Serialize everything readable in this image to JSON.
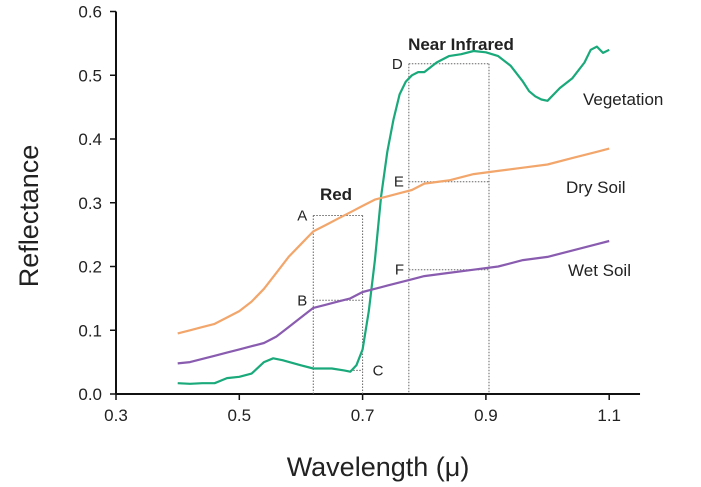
{
  "chart_data": {
    "type": "line",
    "xlabel": "Wavelength (μ)",
    "ylabel": "Reflectance",
    "xlim": [
      0.3,
      1.15
    ],
    "ylim": [
      0.0,
      0.6
    ],
    "x_ticks": [
      "0.3",
      "0.5",
      "0.7",
      "0.9",
      "1.1"
    ],
    "y_ticks": [
      "0.0",
      "0.1",
      "0.2",
      "0.3",
      "0.4",
      "0.5",
      "0.6"
    ],
    "grid": false,
    "series": [
      {
        "name": "Vegetation",
        "color": "#1aa97a",
        "x": [
          0.4,
          0.42,
          0.44,
          0.46,
          0.48,
          0.5,
          0.52,
          0.54,
          0.555,
          0.57,
          0.6,
          0.62,
          0.65,
          0.67,
          0.68,
          0.69,
          0.7,
          0.71,
          0.72,
          0.73,
          0.74,
          0.75,
          0.76,
          0.77,
          0.78,
          0.79,
          0.8,
          0.82,
          0.84,
          0.86,
          0.88,
          0.9,
          0.92,
          0.94,
          0.96,
          0.97,
          0.98,
          0.99,
          1.0,
          1.02,
          1.04,
          1.06,
          1.07,
          1.08,
          1.09,
          1.1
        ],
        "y": [
          0.017,
          0.016,
          0.017,
          0.017,
          0.025,
          0.027,
          0.032,
          0.05,
          0.056,
          0.053,
          0.045,
          0.04,
          0.04,
          0.037,
          0.035,
          0.045,
          0.07,
          0.13,
          0.21,
          0.31,
          0.38,
          0.43,
          0.47,
          0.49,
          0.5,
          0.505,
          0.505,
          0.52,
          0.53,
          0.533,
          0.538,
          0.536,
          0.53,
          0.515,
          0.49,
          0.475,
          0.467,
          0.462,
          0.46,
          0.48,
          0.495,
          0.52,
          0.54,
          0.545,
          0.535,
          0.54
        ]
      },
      {
        "name": "Dry Soil",
        "color": "#f2a66b",
        "x": [
          0.4,
          0.42,
          0.44,
          0.46,
          0.48,
          0.5,
          0.52,
          0.54,
          0.56,
          0.58,
          0.6,
          0.62,
          0.64,
          0.66,
          0.68,
          0.7,
          0.72,
          0.74,
          0.76,
          0.78,
          0.8,
          0.84,
          0.88,
          0.92,
          0.96,
          1.0,
          1.04,
          1.08,
          1.1
        ],
        "y": [
          0.095,
          0.1,
          0.105,
          0.11,
          0.12,
          0.13,
          0.145,
          0.165,
          0.19,
          0.215,
          0.235,
          0.255,
          0.265,
          0.275,
          0.285,
          0.295,
          0.305,
          0.31,
          0.315,
          0.32,
          0.33,
          0.335,
          0.345,
          0.35,
          0.355,
          0.36,
          0.37,
          0.38,
          0.385
        ]
      },
      {
        "name": "Wet Soil",
        "color": "#8a5cb0",
        "x": [
          0.4,
          0.42,
          0.44,
          0.46,
          0.48,
          0.5,
          0.52,
          0.54,
          0.56,
          0.58,
          0.6,
          0.62,
          0.64,
          0.66,
          0.68,
          0.7,
          0.72,
          0.74,
          0.76,
          0.78,
          0.8,
          0.84,
          0.88,
          0.92,
          0.96,
          1.0,
          1.04,
          1.08,
          1.1
        ],
        "y": [
          0.048,
          0.05,
          0.055,
          0.06,
          0.065,
          0.07,
          0.075,
          0.08,
          0.09,
          0.105,
          0.12,
          0.135,
          0.14,
          0.145,
          0.15,
          0.16,
          0.165,
          0.17,
          0.175,
          0.18,
          0.185,
          0.19,
          0.195,
          0.2,
          0.21,
          0.215,
          0.225,
          0.235,
          0.24
        ]
      }
    ],
    "bands": [
      {
        "label": "Red",
        "x_start": 0.62,
        "x_end": 0.7
      },
      {
        "label": "Near Infrared",
        "x_start": 0.775,
        "x_end": 0.905
      }
    ],
    "points": [
      {
        "label": "A",
        "x": 0.62,
        "y": 0.28,
        "x_end": 0.7
      },
      {
        "label": "B",
        "x": 0.62,
        "y": 0.147,
        "x_end": 0.7
      },
      {
        "label": "C",
        "x": 0.7,
        "y": 0.037,
        "x_end": 0.68
      },
      {
        "label": "D",
        "x": 0.775,
        "y": 0.518,
        "x_end": 0.905
      },
      {
        "label": "E",
        "x": 0.775,
        "y": 0.333,
        "x_end": 0.905
      },
      {
        "label": "F",
        "x": 0.775,
        "y": 0.195,
        "x_end": 0.905
      }
    ]
  }
}
